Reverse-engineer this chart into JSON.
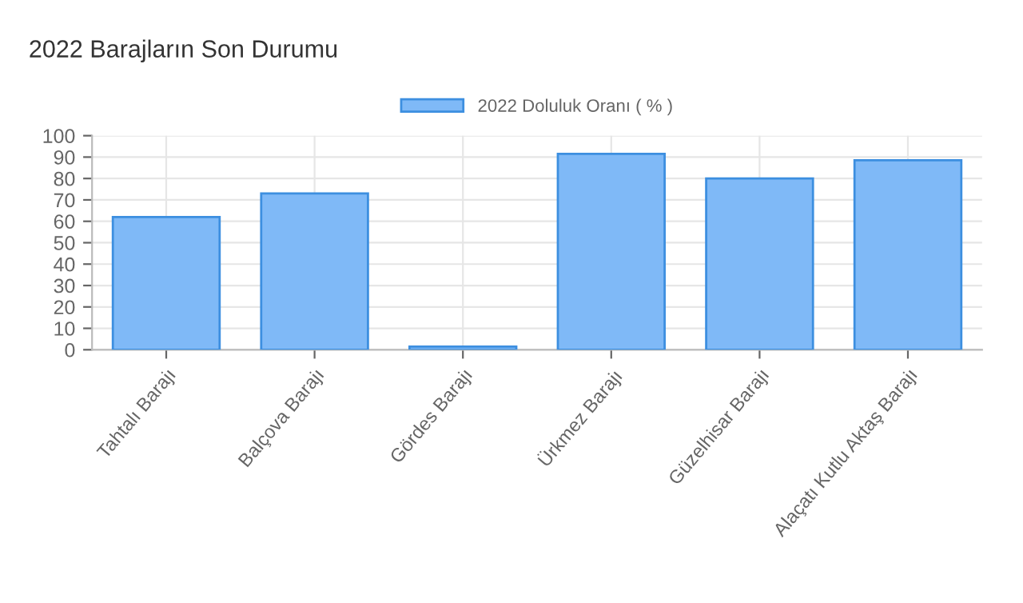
{
  "chart_data": {
    "type": "bar",
    "title": "2022 Barajların Son Durumu",
    "categories": [
      "Tahtalı Barajı",
      "Balçova Barajı",
      "Gördes Barajı",
      "Ürkmez Barajı",
      "Güzelhisar Barajı",
      "Alaçatı Kutlu Aktaş Barajı"
    ],
    "series": [
      {
        "name": "2022 Doluluk Oranı ( % )",
        "color": "#7fb9f7",
        "values": [
          62,
          73,
          1.5,
          91.5,
          80,
          88.5
        ]
      }
    ],
    "ylim": [
      0,
      100
    ],
    "yticks": [
      0,
      10,
      20,
      30,
      40,
      50,
      60,
      70,
      80,
      90,
      100
    ],
    "grid": true,
    "legend": "top"
  }
}
